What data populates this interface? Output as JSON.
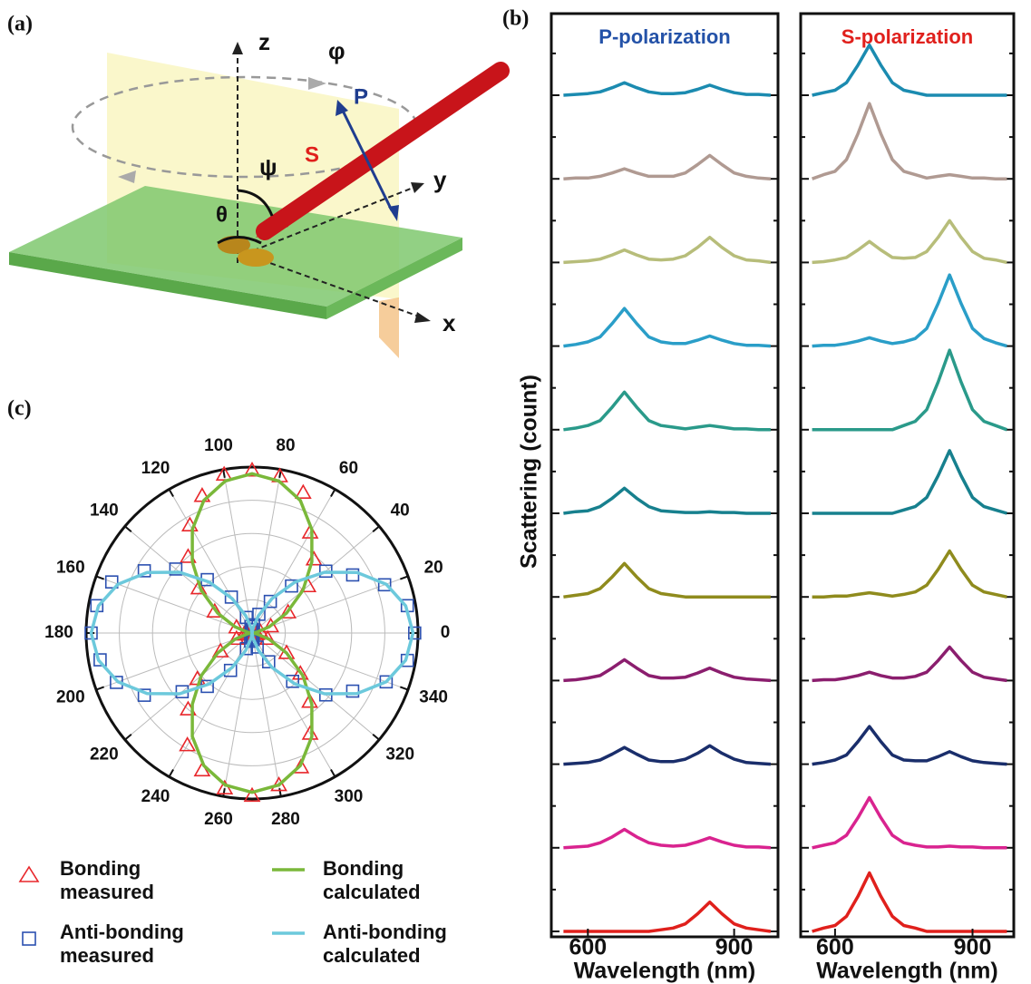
{
  "panel_labels": [
    "(a)",
    "(b)",
    "(c)"
  ],
  "diagram": {
    "labels": [
      "z",
      "φ",
      "P",
      "S",
      "ψ",
      "y",
      "θ",
      "x"
    ]
  },
  "chart_data": [
    {
      "type": "spectra",
      "title": "P-polarization",
      "title_color": "#2452a8",
      "ylabel": "Scattering (count)",
      "xlabel": "Wavelength (nm)",
      "xlim": [
        525,
        990
      ],
      "xticks": [
        600,
        900
      ],
      "x": [
        550,
        575,
        600,
        625,
        650,
        675,
        700,
        725,
        750,
        775,
        800,
        825,
        850,
        875,
        900,
        925,
        950,
        975
      ],
      "series": [
        {
          "color": "#1b8bb0",
          "values": [
            0,
            0.01,
            0.02,
            0.04,
            0.09,
            0.15,
            0.09,
            0.04,
            0.02,
            0.02,
            0.03,
            0.07,
            0.12,
            0.07,
            0.03,
            0.01,
            0.01,
            0
          ]
        },
        {
          "color": "#b09a92",
          "values": [
            0,
            0.01,
            0.01,
            0.03,
            0.07,
            0.12,
            0.07,
            0.03,
            0.03,
            0.03,
            0.07,
            0.17,
            0.28,
            0.17,
            0.07,
            0.03,
            0.01,
            0
          ]
        },
        {
          "color": "#b7bd7a",
          "values": [
            0,
            0.01,
            0.02,
            0.04,
            0.09,
            0.15,
            0.09,
            0.04,
            0.03,
            0.04,
            0.08,
            0.18,
            0.3,
            0.18,
            0.08,
            0.03,
            0.02,
            0
          ]
        },
        {
          "color": "#2a9ec8",
          "values": [
            0,
            0.02,
            0.05,
            0.11,
            0.27,
            0.45,
            0.27,
            0.11,
            0.05,
            0.03,
            0.03,
            0.07,
            0.12,
            0.07,
            0.03,
            0.01,
            0.01,
            0
          ]
        },
        {
          "color": "#2a9a8a",
          "values": [
            0,
            0.02,
            0.05,
            0.11,
            0.27,
            0.45,
            0.27,
            0.11,
            0.05,
            0.03,
            0.01,
            0.03,
            0.05,
            0.03,
            0.01,
            0.01,
            0,
            0
          ]
        },
        {
          "color": "#17808e",
          "values": [
            0,
            0.02,
            0.03,
            0.08,
            0.18,
            0.3,
            0.18,
            0.08,
            0.03,
            0.02,
            0.01,
            0.01,
            0.02,
            0.01,
            0.01,
            0,
            0,
            0
          ]
        },
        {
          "color": "#8f8b1d",
          "values": [
            0,
            0.02,
            0.04,
            0.1,
            0.24,
            0.4,
            0.24,
            0.1,
            0.04,
            0.02,
            0,
            0,
            0,
            0,
            0,
            0,
            0,
            0
          ]
        },
        {
          "color": "#8b1e6e",
          "values": [
            0,
            0.01,
            0.03,
            0.06,
            0.15,
            0.25,
            0.15,
            0.06,
            0.03,
            0.03,
            0.04,
            0.09,
            0.15,
            0.09,
            0.04,
            0.02,
            0.01,
            0
          ]
        },
        {
          "color": "#1a2e6b",
          "values": [
            0,
            0.01,
            0.02,
            0.05,
            0.12,
            0.2,
            0.12,
            0.05,
            0.03,
            0.03,
            0.06,
            0.13,
            0.22,
            0.13,
            0.06,
            0.02,
            0.01,
            0
          ]
        },
        {
          "color": "#d9238f",
          "values": [
            0,
            0.01,
            0.02,
            0.06,
            0.13,
            0.22,
            0.13,
            0.06,
            0.03,
            0.02,
            0.03,
            0.07,
            0.12,
            0.07,
            0.03,
            0.01,
            0.01,
            0
          ]
        },
        {
          "color": "#e0201c",
          "values": [
            0,
            0,
            0,
            0,
            0,
            0,
            0,
            0,
            0.02,
            0.04,
            0.09,
            0.21,
            0.35,
            0.21,
            0.09,
            0.04,
            0.02,
            0
          ]
        }
      ]
    },
    {
      "type": "spectra",
      "title": "S-polarization",
      "title_color": "#e0201c",
      "xlabel": "Wavelength (nm)",
      "xlim": [
        525,
        990
      ],
      "xticks": [
        600,
        900
      ],
      "x": [
        550,
        575,
        600,
        625,
        650,
        675,
        700,
        725,
        750,
        775,
        800,
        825,
        850,
        875,
        900,
        925,
        950,
        975
      ],
      "series": [
        {
          "color": "#1b8bb0",
          "values": [
            0,
            0.03,
            0.06,
            0.15,
            0.36,
            0.6,
            0.36,
            0.15,
            0.06,
            0.03,
            0,
            0,
            0,
            0,
            0,
            0,
            0,
            0
          ]
        },
        {
          "color": "#b09a92",
          "values": [
            0,
            0.05,
            0.09,
            0.23,
            0.54,
            0.9,
            0.54,
            0.23,
            0.09,
            0.05,
            0.01,
            0.03,
            0.05,
            0.03,
            0.01,
            0.01,
            0,
            0
          ]
        },
        {
          "color": "#b7bd7a",
          "values": [
            0,
            0.01,
            0.03,
            0.06,
            0.15,
            0.25,
            0.15,
            0.06,
            0.05,
            0.06,
            0.13,
            0.3,
            0.5,
            0.3,
            0.13,
            0.05,
            0.03,
            0
          ]
        },
        {
          "color": "#2a9ec8",
          "values": [
            0,
            0.01,
            0.01,
            0.03,
            0.06,
            0.1,
            0.06,
            0.03,
            0.05,
            0.09,
            0.21,
            0.51,
            0.85,
            0.51,
            0.21,
            0.09,
            0.04,
            0
          ]
        },
        {
          "color": "#2a9a8a",
          "values": [
            0,
            0,
            0,
            0,
            0,
            0,
            0,
            0,
            0.05,
            0.1,
            0.24,
            0.57,
            0.95,
            0.57,
            0.24,
            0.1,
            0.05,
            0
          ]
        },
        {
          "color": "#17808e",
          "values": [
            0,
            0,
            0,
            0,
            0,
            0,
            0,
            0,
            0.04,
            0.08,
            0.19,
            0.45,
            0.75,
            0.45,
            0.19,
            0.08,
            0.04,
            0
          ]
        },
        {
          "color": "#8f8b1d",
          "values": [
            0,
            0,
            0.01,
            0.01,
            0.03,
            0.05,
            0.03,
            0.01,
            0.03,
            0.06,
            0.14,
            0.33,
            0.55,
            0.33,
            0.14,
            0.06,
            0.03,
            0
          ]
        },
        {
          "color": "#8b1e6e",
          "values": [
            0,
            0.01,
            0.01,
            0.03,
            0.06,
            0.1,
            0.06,
            0.03,
            0.03,
            0.05,
            0.1,
            0.24,
            0.4,
            0.24,
            0.1,
            0.04,
            0.02,
            0
          ]
        },
        {
          "color": "#1a2e6b",
          "values": [
            0,
            0.02,
            0.05,
            0.11,
            0.27,
            0.45,
            0.27,
            0.11,
            0.05,
            0.04,
            0.04,
            0.09,
            0.15,
            0.09,
            0.04,
            0.02,
            0.01,
            0
          ]
        },
        {
          "color": "#d9238f",
          "values": [
            0,
            0.03,
            0.06,
            0.15,
            0.36,
            0.6,
            0.36,
            0.15,
            0.06,
            0.03,
            0.01,
            0.01,
            0.02,
            0.01,
            0.01,
            0,
            0,
            0
          ]
        },
        {
          "color": "#e0201c",
          "values": [
            0,
            0.04,
            0.07,
            0.18,
            0.42,
            0.7,
            0.42,
            0.18,
            0.07,
            0.04,
            0,
            0,
            0,
            0,
            0,
            0,
            0,
            0
          ]
        }
      ]
    },
    {
      "type": "polar",
      "rlim": [
        0,
        1
      ],
      "rticks": [
        0.2,
        0.4,
        0.6,
        0.8
      ],
      "angle_ticks": [
        0,
        20,
        40,
        60,
        80,
        100,
        120,
        140,
        160,
        180,
        200,
        220,
        240,
        260,
        280,
        300,
        320,
        340
      ],
      "theta": [
        0,
        10,
        20,
        30,
        40,
        50,
        60,
        70,
        80,
        90,
        100,
        110,
        120,
        130,
        140,
        150,
        160,
        170,
        180,
        190,
        200,
        210,
        220,
        230,
        240,
        250,
        260,
        270,
        280,
        290,
        300,
        310,
        320,
        330,
        340,
        350
      ],
      "series": [
        {
          "name": "Bonding measured",
          "style": "triangle",
          "color": "#e8262a",
          "values": [
            0.02,
            0.05,
            0.12,
            0.25,
            0.44,
            0.58,
            0.7,
            0.9,
            0.96,
            0.98,
            0.97,
            0.88,
            0.75,
            0.6,
            0.42,
            0.26,
            0.1,
            0.04,
            0.03,
            0.05,
            0.1,
            0.22,
            0.43,
            0.6,
            0.78,
            0.88,
            0.95,
            0.98,
            0.93,
            0.86,
            0.7,
            0.54,
            0.38,
            0.24,
            0.1,
            0.03
          ]
        },
        {
          "name": "Anti-bonding measured",
          "style": "square",
          "color": "#2b50b0",
          "values": [
            0.98,
            0.95,
            0.85,
            0.7,
            0.58,
            0.37,
            0.22,
            0.12,
            0.05,
            0.02,
            0.04,
            0.1,
            0.25,
            0.42,
            0.6,
            0.75,
            0.9,
            0.95,
            0.97,
            0.93,
            0.87,
            0.75,
            0.55,
            0.42,
            0.26,
            0.1,
            0.05,
            0.03,
            0.04,
            0.09,
            0.2,
            0.38,
            0.58,
            0.7,
            0.86,
            0.95
          ]
        },
        {
          "name": "Bonding calculated",
          "style": "line",
          "color": "#7ab83a",
          "values": [
            0,
            0.03,
            0.11,
            0.24,
            0.4,
            0.56,
            0.72,
            0.85,
            0.93,
            0.96,
            0.93,
            0.85,
            0.72,
            0.56,
            0.4,
            0.24,
            0.11,
            0.03,
            0,
            0.03,
            0.11,
            0.24,
            0.4,
            0.56,
            0.72,
            0.85,
            0.93,
            0.96,
            0.93,
            0.85,
            0.72,
            0.56,
            0.4,
            0.24,
            0.11,
            0.03
          ]
        },
        {
          "name": "Anti-bonding calculated",
          "style": "line",
          "color": "#6cc9dc",
          "values": [
            0.97,
            0.94,
            0.86,
            0.73,
            0.57,
            0.4,
            0.24,
            0.11,
            0.03,
            0,
            0.03,
            0.11,
            0.24,
            0.4,
            0.57,
            0.73,
            0.86,
            0.94,
            0.97,
            0.94,
            0.86,
            0.73,
            0.57,
            0.4,
            0.24,
            0.11,
            0.03,
            0,
            0.03,
            0.11,
            0.24,
            0.4,
            0.57,
            0.73,
            0.86,
            0.94
          ]
        }
      ]
    }
  ]
}
